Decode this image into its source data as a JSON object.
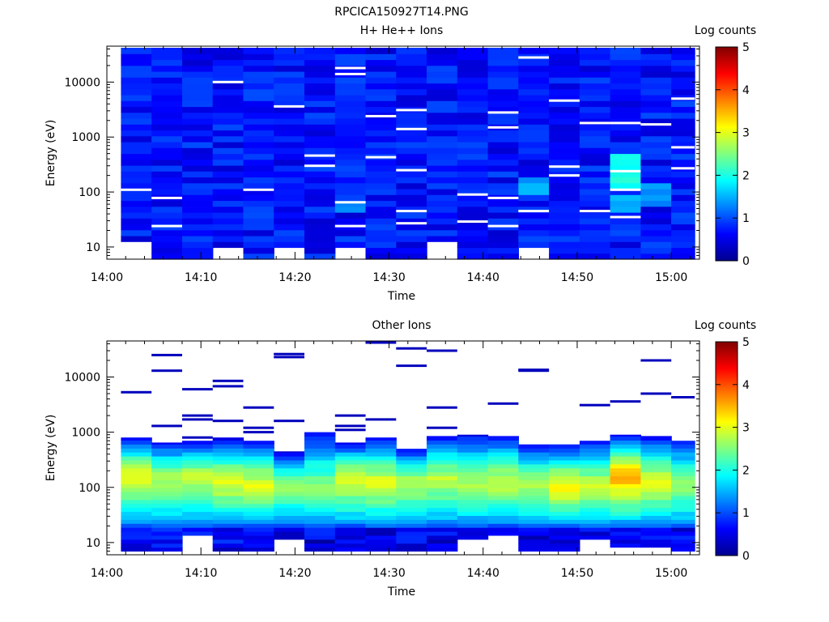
{
  "file_title": "RPCICA150927T14.PNG",
  "chart_data": [
    {
      "type": "heatmap",
      "title": "H+ He++ Ions",
      "xlabel": "Time",
      "ylabel": "Energy (eV)",
      "yscale": "log",
      "ylim": [
        6,
        45000
      ],
      "xlim": [
        "14:00",
        "15:03"
      ],
      "xticks": [
        "14:00",
        "14:10",
        "14:20",
        "14:30",
        "14:40",
        "14:50",
        "15:00"
      ],
      "yticks": [
        10,
        100,
        1000,
        10000
      ],
      "ytick_labels": [
        "10",
        "100",
        "1000",
        "10000"
      ],
      "colorbar": {
        "label": "Log counts",
        "range": [
          0,
          5
        ],
        "ticks": [
          "0",
          "1",
          "2",
          "3",
          "4",
          "5"
        ]
      },
      "columns": [
        {
          "start": "14:01:30",
          "end": "14:04:45"
        },
        {
          "start": "14:04:45",
          "end": "14:08:00"
        },
        {
          "start": "14:08:00",
          "end": "14:11:15"
        },
        {
          "start": "14:11:15",
          "end": "14:14:30"
        },
        {
          "start": "14:14:30",
          "end": "14:17:45"
        },
        {
          "start": "14:17:45",
          "end": "14:21:00"
        },
        {
          "start": "14:21:00",
          "end": "14:24:15"
        },
        {
          "start": "14:24:15",
          "end": "14:27:30"
        },
        {
          "start": "14:27:30",
          "end": "14:30:45"
        },
        {
          "start": "14:30:45",
          "end": "14:34:00"
        },
        {
          "start": "14:34:00",
          "end": "14:37:15"
        },
        {
          "start": "14:37:15",
          "end": "14:40:30"
        },
        {
          "start": "14:40:30",
          "end": "14:43:45"
        },
        {
          "start": "14:43:45",
          "end": "14:47:00"
        },
        {
          "start": "14:47:00",
          "end": "14:50:15"
        },
        {
          "start": "14:50:15",
          "end": "14:53:30"
        },
        {
          "start": "14:53:30",
          "end": "14:56:45"
        },
        {
          "start": "14:56:45",
          "end": "15:00:00"
        },
        {
          "start": "15:00:00",
          "end": "15:02:30"
        }
      ],
      "energy_range_eV": [
        6,
        42000
      ],
      "background_log_counts": [
        0.4,
        1.0
      ],
      "low_energy_gaps": [
        {
          "column": 0,
          "max_eV": 13
        },
        {
          "column": 3,
          "max_eV": 9
        },
        {
          "column": 5,
          "max_eV": 9
        },
        {
          "column": 7,
          "max_eV": 9
        },
        {
          "column": 10,
          "max_eV": 13
        },
        {
          "column": 13,
          "max_eV": 9
        }
      ],
      "enhancements": [
        {
          "column": 7,
          "energy_eV": [
            40,
            70
          ],
          "log_counts": 1.2
        },
        {
          "column": 13,
          "energy_eV": [
            100,
            200
          ],
          "log_counts": 1.3
        },
        {
          "column": 16,
          "energy_eV": [
            120,
            500
          ],
          "log_counts": 1.8
        },
        {
          "column": 16,
          "energy_eV": [
            40,
            100
          ],
          "log_counts": 1.3
        },
        {
          "column": 17,
          "energy_eV": [
            60,
            150
          ],
          "log_counts": 1.2
        }
      ],
      "white_gaps_eV": [
        [
          0,
          110
        ],
        [
          1,
          78
        ],
        [
          1,
          24
        ],
        [
          3,
          10000
        ],
        [
          4,
          110
        ],
        [
          5,
          3600
        ],
        [
          6,
          300
        ],
        [
          6,
          460
        ],
        [
          7,
          18000
        ],
        [
          7,
          14000
        ],
        [
          7,
          65
        ],
        [
          7,
          24
        ],
        [
          8,
          2400
        ],
        [
          8,
          430
        ],
        [
          9,
          3100
        ],
        [
          9,
          1400
        ],
        [
          9,
          250
        ],
        [
          9,
          45
        ],
        [
          9,
          27
        ],
        [
          11,
          90
        ],
        [
          11,
          29
        ],
        [
          12,
          2800
        ],
        [
          12,
          1500
        ],
        [
          12,
          78
        ],
        [
          12,
          24
        ],
        [
          13,
          28000
        ],
        [
          13,
          45
        ],
        [
          14,
          4600
        ],
        [
          14,
          290
        ],
        [
          14,
          200
        ],
        [
          15,
          1800
        ],
        [
          15,
          45
        ],
        [
          16,
          1800
        ],
        [
          16,
          240
        ],
        [
          16,
          110
        ],
        [
          16,
          35
        ],
        [
          17,
          1700
        ],
        [
          18,
          5000
        ],
        [
          18,
          650
        ],
        [
          18,
          270
        ]
      ]
    },
    {
      "type": "heatmap",
      "title": "Other Ions",
      "xlabel": "Time",
      "ylabel": "Energy (eV)",
      "yscale": "log",
      "ylim": [
        6,
        45000
      ],
      "xlim": [
        "14:00",
        "15:03"
      ],
      "xticks": [
        "14:00",
        "14:10",
        "14:20",
        "14:30",
        "14:40",
        "14:50",
        "15:00"
      ],
      "yticks": [
        10,
        100,
        1000,
        10000
      ],
      "ytick_labels": [
        "10",
        "100",
        "1000",
        "10000"
      ],
      "colorbar": {
        "label": "Log counts",
        "range": [
          0,
          5
        ],
        "ticks": [
          "0",
          "1",
          "2",
          "3",
          "4",
          "5"
        ]
      },
      "columns": [
        {
          "upper_eV": 800,
          "lower_eV": 20,
          "peak_eV": 160,
          "peak_log_counts": 3.1,
          "sparse_lines_eV": [
            5300
          ]
        },
        {
          "upper_eV": 650,
          "lower_eV": 20,
          "peak_eV": 140,
          "peak_log_counts": 2.8,
          "sparse_lines_eV": [
            25000,
            13000,
            1300
          ]
        },
        {
          "upper_eV": 700,
          "lower_eV": 20,
          "peak_eV": 150,
          "peak_log_counts": 2.9,
          "sparse_lines_eV": [
            6000,
            2000,
            1700,
            800
          ]
        },
        {
          "upper_eV": 800,
          "lower_eV": 20,
          "peak_eV": 120,
          "peak_log_counts": 3.0,
          "sparse_lines_eV": [
            8500,
            6800,
            1600
          ]
        },
        {
          "upper_eV": 700,
          "lower_eV": 20,
          "peak_eV": 110,
          "peak_log_counts": 3.0,
          "sparse_lines_eV": [
            2800,
            1200,
            1000
          ]
        },
        {
          "upper_eV": 450,
          "lower_eV": 20,
          "peak_eV": 100,
          "peak_log_counts": 2.6,
          "sparse_lines_eV": [
            26000,
            23000,
            1600
          ]
        },
        {
          "upper_eV": 1000,
          "lower_eV": 20,
          "peak_eV": 90,
          "peak_log_counts": 2.6,
          "sparse_lines_eV": []
        },
        {
          "upper_eV": 650,
          "lower_eV": 20,
          "peak_eV": 140,
          "peak_log_counts": 3.0,
          "sparse_lines_eV": [
            2000,
            1300,
            1100
          ]
        },
        {
          "upper_eV": 800,
          "lower_eV": 20,
          "peak_eV": 120,
          "peak_log_counts": 3.0,
          "sparse_lines_eV": [
            42000,
            1700
          ]
        },
        {
          "upper_eV": 500,
          "lower_eV": 20,
          "peak_eV": 120,
          "peak_log_counts": 2.8,
          "sparse_lines_eV": [
            33000,
            16000
          ]
        },
        {
          "upper_eV": 850,
          "lower_eV": 20,
          "peak_eV": 140,
          "peak_log_counts": 2.8,
          "sparse_lines_eV": [
            30000,
            2800,
            1200
          ]
        },
        {
          "upper_eV": 900,
          "lower_eV": 20,
          "peak_eV": 110,
          "peak_log_counts": 2.7,
          "sparse_lines_eV": []
        },
        {
          "upper_eV": 850,
          "lower_eV": 20,
          "peak_eV": 120,
          "peak_log_counts": 2.9,
          "sparse_lines_eV": [
            3300
          ]
        },
        {
          "upper_eV": 600,
          "lower_eV": 20,
          "peak_eV": 110,
          "peak_log_counts": 2.8,
          "sparse_lines_eV": [
            13500,
            13000
          ]
        },
        {
          "upper_eV": 600,
          "lower_eV": 20,
          "peak_eV": 100,
          "peak_log_counts": 3.2,
          "sparse_lines_eV": []
        },
        {
          "upper_eV": 700,
          "lower_eV": 20,
          "peak_eV": 100,
          "peak_log_counts": 2.9,
          "sparse_lines_eV": [
            3100
          ]
        },
        {
          "upper_eV": 900,
          "lower_eV": 20,
          "peak_eV": 160,
          "peak_log_counts": 3.6,
          "sparse_lines_eV": [
            3600
          ]
        },
        {
          "upper_eV": 850,
          "lower_eV": 20,
          "peak_eV": 120,
          "peak_log_counts": 3.0,
          "sparse_lines_eV": [
            20000,
            5000
          ]
        },
        {
          "upper_eV": 700,
          "lower_eV": 20,
          "peak_eV": 110,
          "peak_log_counts": 2.7,
          "sparse_lines_eV": [
            4300
          ]
        }
      ],
      "low_energy_gaps": [
        {
          "column": 2,
          "max_eV": 14
        },
        {
          "column": 5,
          "max_eV": 11
        },
        {
          "column": 11,
          "max_eV": 11
        },
        {
          "column": 12,
          "max_eV": 14
        },
        {
          "column": 15,
          "max_eV": 11
        },
        {
          "column": 16,
          "max_eV": 8
        },
        {
          "column": 17,
          "max_eV": 8
        }
      ]
    }
  ]
}
